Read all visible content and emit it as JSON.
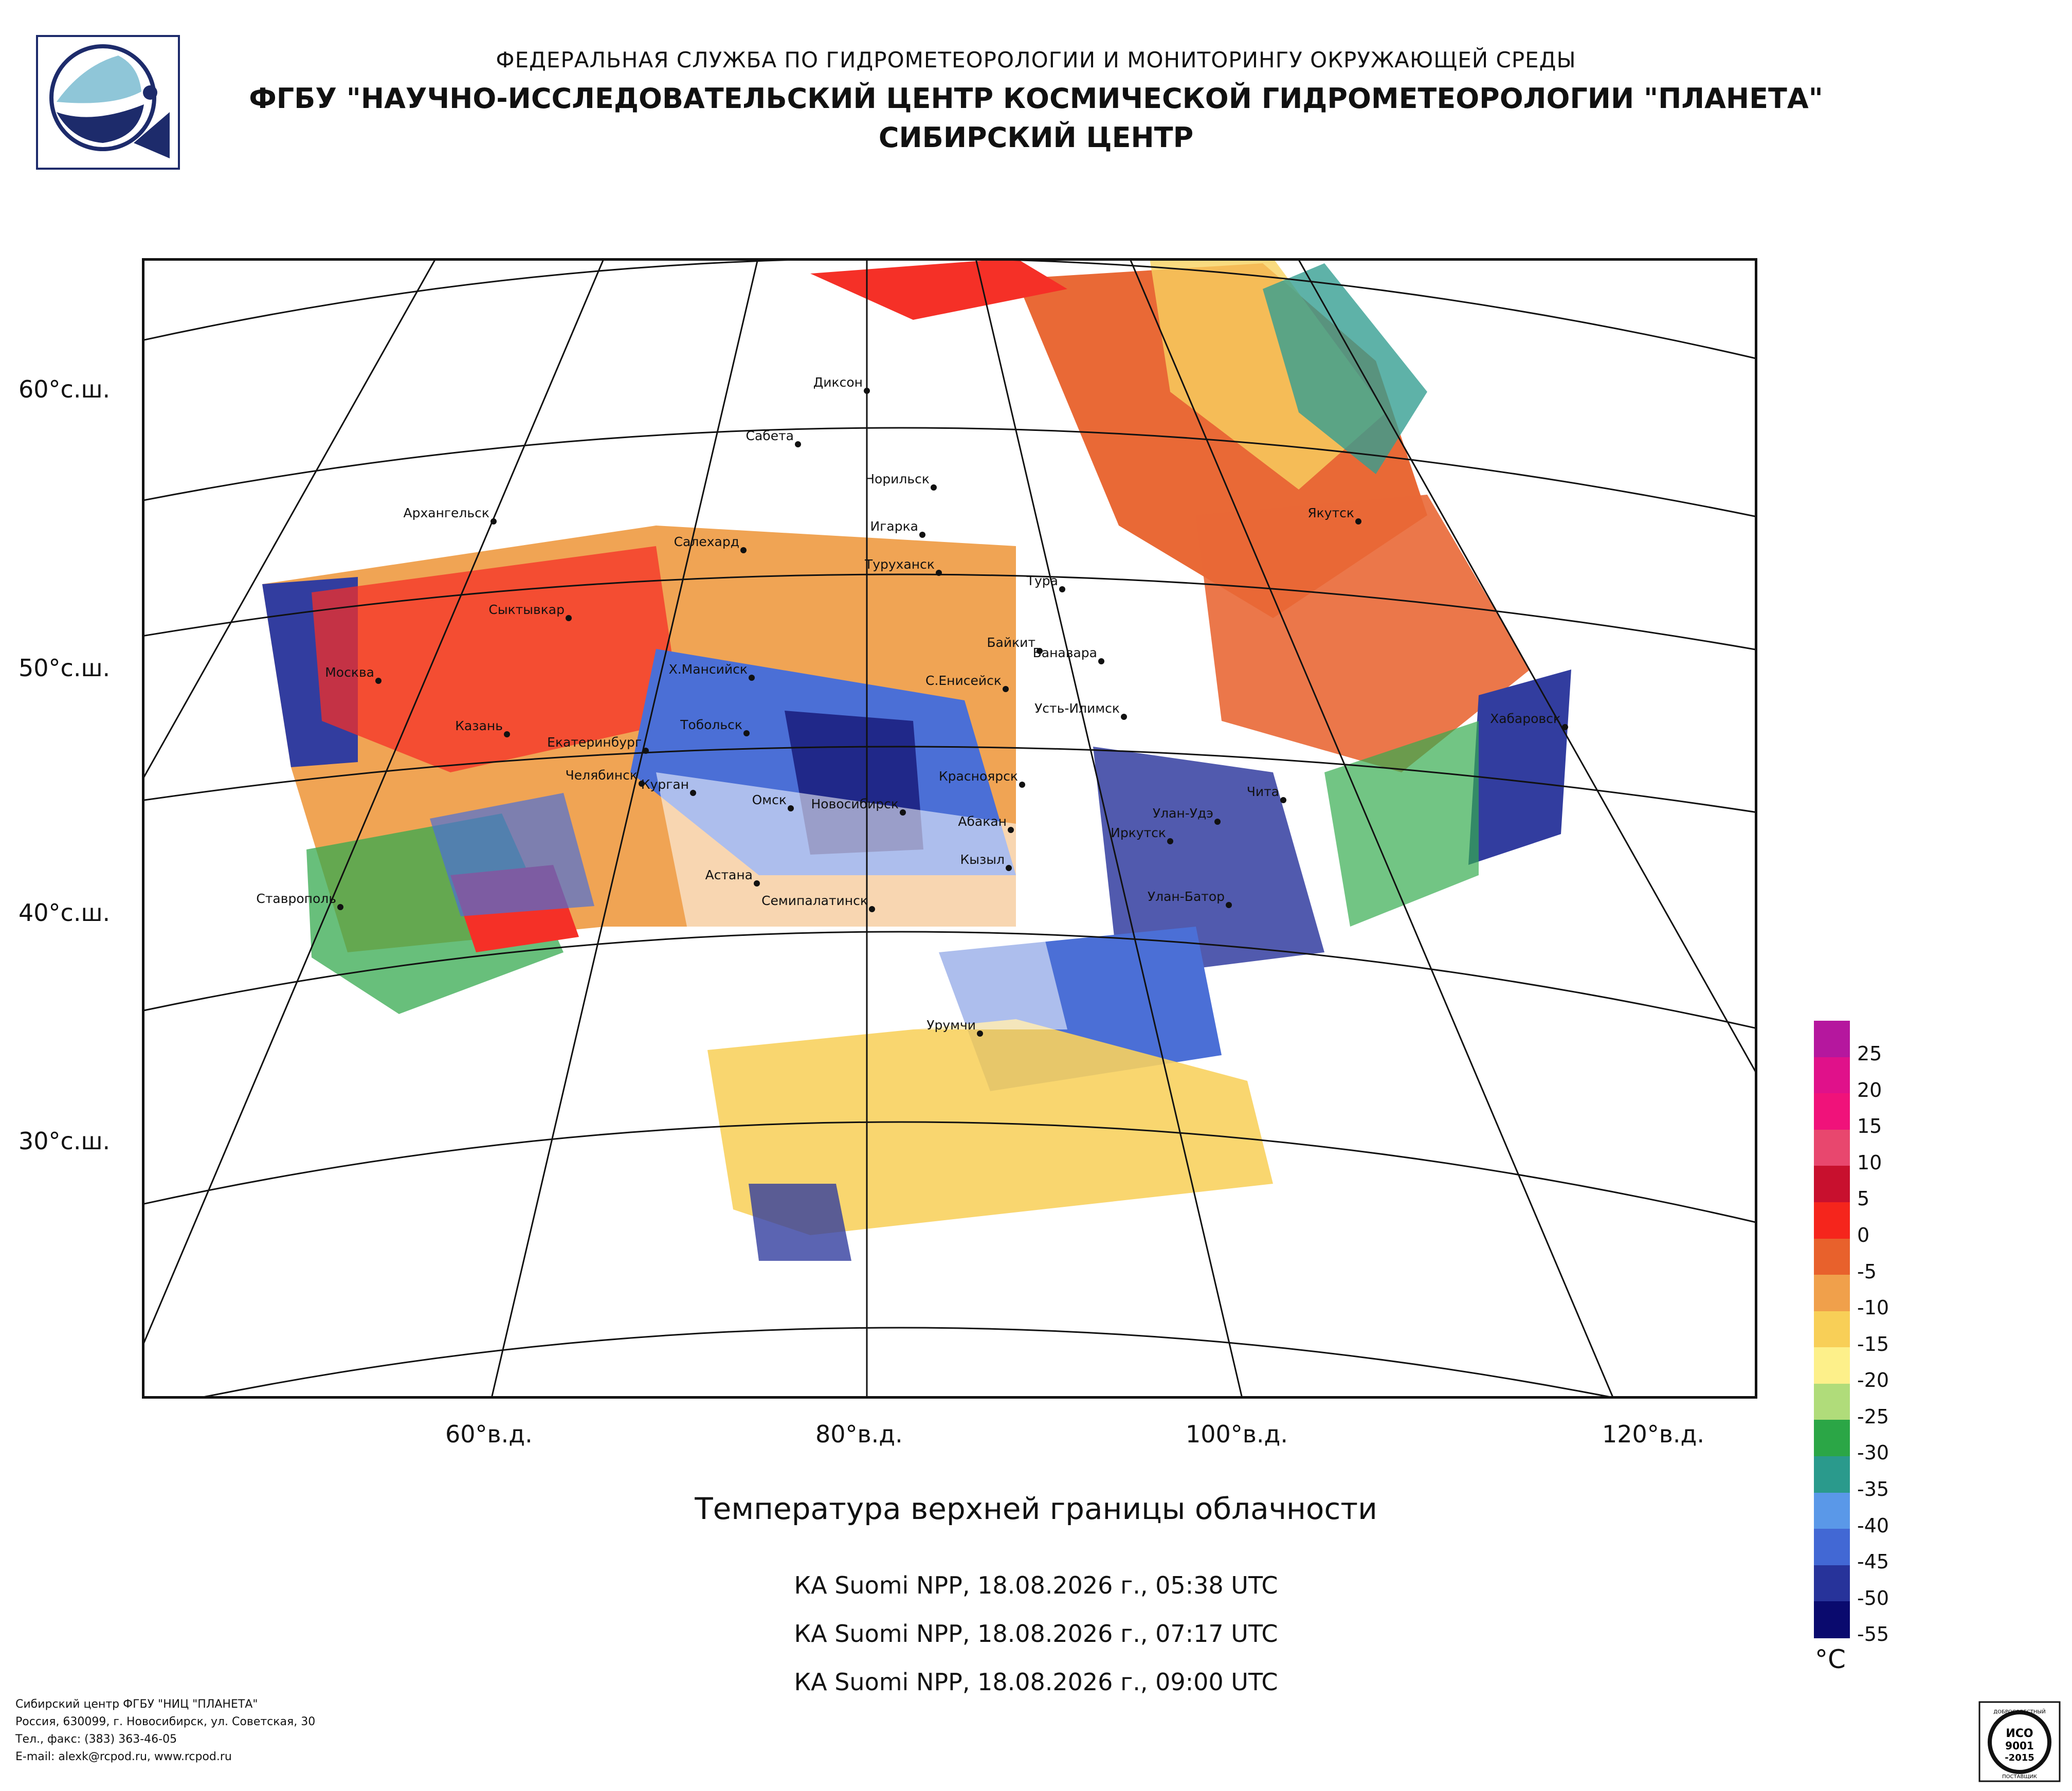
{
  "header": {
    "line1": "ФЕДЕРАЛЬНАЯ СЛУЖБА ПО ГИДРОМЕТЕОРОЛОГИИ И МОНИТОРИНГУ ОКРУЖАЮЩЕЙ СРЕДЫ",
    "line2": "ФГБУ \"НАУЧНО-ИССЛЕДОВАТЕЛЬСКИЙ ЦЕНТР КОСМИЧЕСКОЙ ГИДРОМЕТЕОРОЛОГИИ \"ПЛАНЕТА\"",
    "line3": "СИБИРСКИЙ ЦЕНТР"
  },
  "map": {
    "lat_labels": [
      "60°с.ш.",
      "50°с.ш.",
      "40°с.ш.",
      "30°с.ш."
    ],
    "lon_labels": [
      "60°в.д.",
      "80°в.д.",
      "100°в.д.",
      "120°в.д."
    ],
    "cities": [
      {
        "name": "Диксон"
      },
      {
        "name": "Сабета"
      },
      {
        "name": "Норильск"
      },
      {
        "name": "Игарка"
      },
      {
        "name": "Туруханск"
      },
      {
        "name": "Салехард"
      },
      {
        "name": "Архангельск"
      },
      {
        "name": "Сыктывкар"
      },
      {
        "name": "Москва"
      },
      {
        "name": "Казань"
      },
      {
        "name": "Екатеринбург"
      },
      {
        "name": "Х.Мансийск"
      },
      {
        "name": "Тобольск"
      },
      {
        "name": "Челябинск"
      },
      {
        "name": "Курган"
      },
      {
        "name": "Омск"
      },
      {
        "name": "Новосибирск"
      },
      {
        "name": "Тура"
      },
      {
        "name": "Байкит"
      },
      {
        "name": "Ванавара"
      },
      {
        "name": "С.Енисейск"
      },
      {
        "name": "Усть-Илимск"
      },
      {
        "name": "Красноярск"
      },
      {
        "name": "Абакан"
      },
      {
        "name": "Кызыл"
      },
      {
        "name": "Улан-Удэ"
      },
      {
        "name": "Иркутск"
      },
      {
        "name": "Чита"
      },
      {
        "name": "Якутск"
      },
      {
        "name": "Хабаровск"
      },
      {
        "name": "Улан-Батор"
      },
      {
        "name": "Астана"
      },
      {
        "name": "Семипалатинск"
      },
      {
        "name": "Ставрополь"
      },
      {
        "name": "Урумчи"
      }
    ]
  },
  "title": "Температура верхней границы облачности",
  "passes": [
    "КА Suomi NPP, 18.08.2026 г., 05:38 UTC",
    "КА Suomi NPP, 18.08.2026 г., 07:17 UTC",
    "КА Suomi NPP, 18.08.2026 г., 09:00 UTC"
  ],
  "legend": {
    "unit": "°C",
    "ticks": [
      "25",
      "20",
      "15",
      "10",
      "5",
      "0",
      "-5",
      "-10",
      "-15",
      "-20",
      "-25",
      "-30",
      "-35",
      "-40",
      "-45",
      "-50",
      "-55"
    ],
    "colors": [
      "#b5179e",
      "#e0118a",
      "#f0127a",
      "#e8476e",
      "#c8102e",
      "#f5251c",
      "#e8612c",
      "#f0a04b",
      "#f8cf57",
      "#fdf08a",
      "#b0dc7a",
      "#2ba646",
      "#2a9a8c",
      "#5a98e8",
      "#4268d4",
      "#27339a",
      "#0a0a6e"
    ]
  },
  "footer": {
    "org": "Сибирский центр ФГБУ \"НИЦ \"ПЛАНЕТА\"",
    "address": "Россия, 630099, г. Новосибирск, ул. Советская, 30",
    "phone": "Тел., факс: (383) 363-46-05",
    "email": "E-mail: alexk@rcpod.ru, www.rcpod.ru"
  },
  "iso_badge": {
    "top": "ДОБРОСОВЕСТНЫЙ",
    "line1": "ИСО",
    "line2": "9001",
    "line3": "-2015",
    "bottom": "ПОСТАВЩИК"
  }
}
